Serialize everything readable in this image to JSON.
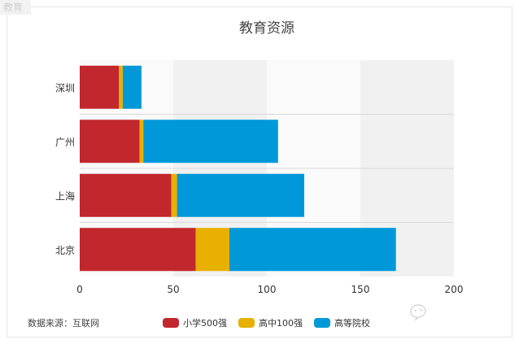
{
  "corner_label": "教育",
  "footer": {
    "source": "数据来源：互联网"
  },
  "chart_data": {
    "type": "bar",
    "orientation": "horizontal",
    "stacked": true,
    "title": "教育资源",
    "categories": [
      "北京",
      "上海",
      "广州",
      "深圳"
    ],
    "series": [
      {
        "name": "小学500强",
        "color": "#c1272d",
        "values": [
          62,
          49,
          32,
          21
        ]
      },
      {
        "name": "高中100强",
        "color": "#e8b000",
        "values": [
          18,
          3,
          2,
          2
        ]
      },
      {
        "name": "高等院校",
        "color": "#0098d9",
        "values": [
          89,
          68,
          72,
          10
        ]
      }
    ],
    "xlim": [
      0,
      200
    ],
    "xticks": [
      "0",
      "50",
      "100",
      "150",
      "200"
    ],
    "grid": true,
    "legend_position": "bottom"
  }
}
